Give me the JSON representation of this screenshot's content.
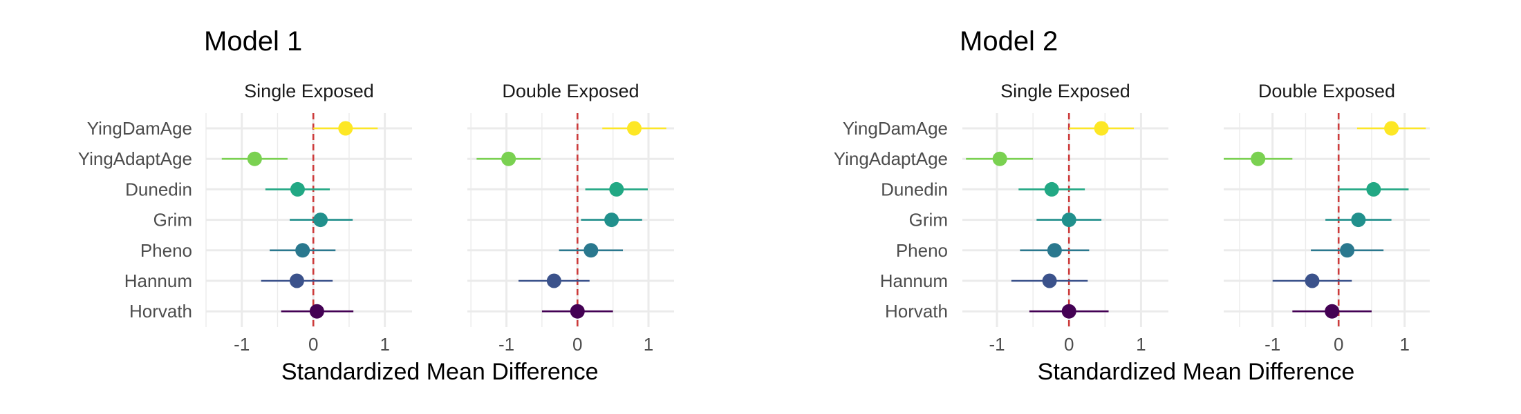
{
  "x_ticks": [
    -1,
    0,
    1
  ],
  "chart_data": [
    {
      "type": "forest",
      "title": "Model 1",
      "xlabel": "Standardized Mean Difference",
      "reference_line": 0,
      "categories": [
        "YingDamAge",
        "YingAdaptAge",
        "Dunedin",
        "Grim",
        "Pheno",
        "Hannum",
        "Horvath"
      ],
      "category_colors": [
        "#FDE725",
        "#7AD151",
        "#22A884",
        "#21908C",
        "#2A788E",
        "#3B528B",
        "#440154"
      ],
      "panels": [
        {
          "title": "Single Exposed",
          "xlim": [
            -1.5,
            1.38
          ],
          "points": [
            {
              "category": "YingDamAge",
              "estimate": 0.45,
              "lower": 0.0,
              "upper": 0.9
            },
            {
              "category": "YingAdaptAge",
              "estimate": -0.82,
              "lower": -1.28,
              "upper": -0.36
            },
            {
              "category": "Dunedin",
              "estimate": -0.22,
              "lower": -0.67,
              "upper": 0.23
            },
            {
              "category": "Grim",
              "estimate": 0.1,
              "lower": -0.33,
              "upper": 0.55
            },
            {
              "category": "Pheno",
              "estimate": -0.15,
              "lower": -0.61,
              "upper": 0.31
            },
            {
              "category": "Hannum",
              "estimate": -0.23,
              "lower": -0.73,
              "upper": 0.27
            },
            {
              "category": "Horvath",
              "estimate": 0.05,
              "lower": -0.45,
              "upper": 0.56
            }
          ]
        },
        {
          "title": "Double Exposed",
          "xlim": [
            -1.55,
            1.36
          ],
          "points": [
            {
              "category": "YingDamAge",
              "estimate": 0.8,
              "lower": 0.35,
              "upper": 1.25
            },
            {
              "category": "YingAdaptAge",
              "estimate": -0.97,
              "lower": -1.42,
              "upper": -0.52
            },
            {
              "category": "Dunedin",
              "estimate": 0.55,
              "lower": 0.11,
              "upper": 0.99
            },
            {
              "category": "Grim",
              "estimate": 0.48,
              "lower": 0.05,
              "upper": 0.91
            },
            {
              "category": "Pheno",
              "estimate": 0.19,
              "lower": -0.26,
              "upper": 0.64
            },
            {
              "category": "Hannum",
              "estimate": -0.33,
              "lower": -0.83,
              "upper": 0.17
            },
            {
              "category": "Horvath",
              "estimate": 0.0,
              "lower": -0.5,
              "upper": 0.5
            }
          ]
        }
      ]
    },
    {
      "type": "forest",
      "title": "Model 2",
      "xlabel": "Standardized Mean Difference",
      "reference_line": 0,
      "categories": [
        "YingDamAge",
        "YingAdaptAge",
        "Dunedin",
        "Grim",
        "Pheno",
        "Hannum",
        "Horvath"
      ],
      "category_colors": [
        "#FDE725",
        "#7AD151",
        "#22A884",
        "#21908C",
        "#2A788E",
        "#3B528B",
        "#440154"
      ],
      "panels": [
        {
          "title": "Single Exposed",
          "xlim": [
            -1.48,
            1.38
          ],
          "points": [
            {
              "category": "YingDamAge",
              "estimate": 0.45,
              "lower": 0.0,
              "upper": 0.9
            },
            {
              "category": "YingAdaptAge",
              "estimate": -0.96,
              "lower": -1.43,
              "upper": -0.5
            },
            {
              "category": "Dunedin",
              "estimate": -0.24,
              "lower": -0.7,
              "upper": 0.22
            },
            {
              "category": "Grim",
              "estimate": 0.0,
              "lower": -0.45,
              "upper": 0.45
            },
            {
              "category": "Pheno",
              "estimate": -0.2,
              "lower": -0.68,
              "upper": 0.28
            },
            {
              "category": "Hannum",
              "estimate": -0.27,
              "lower": -0.8,
              "upper": 0.26
            },
            {
              "category": "Horvath",
              "estimate": 0.0,
              "lower": -0.55,
              "upper": 0.55
            }
          ]
        },
        {
          "title": "Double Exposed",
          "xlim": [
            -1.74,
            1.38
          ],
          "points": [
            {
              "category": "YingDamAge",
              "estimate": 0.8,
              "lower": 0.28,
              "upper": 1.32
            },
            {
              "category": "YingAdaptAge",
              "estimate": -1.22,
              "lower": -1.74,
              "upper": -0.7
            },
            {
              "category": "Dunedin",
              "estimate": 0.53,
              "lower": 0.0,
              "upper": 1.06
            },
            {
              "category": "Grim",
              "estimate": 0.3,
              "lower": -0.2,
              "upper": 0.8
            },
            {
              "category": "Pheno",
              "estimate": 0.13,
              "lower": -0.42,
              "upper": 0.68
            },
            {
              "category": "Hannum",
              "estimate": -0.4,
              "lower": -1.0,
              "upper": 0.2
            },
            {
              "category": "Horvath",
              "estimate": -0.1,
              "lower": -0.7,
              "upper": 0.5
            }
          ]
        }
      ]
    }
  ]
}
